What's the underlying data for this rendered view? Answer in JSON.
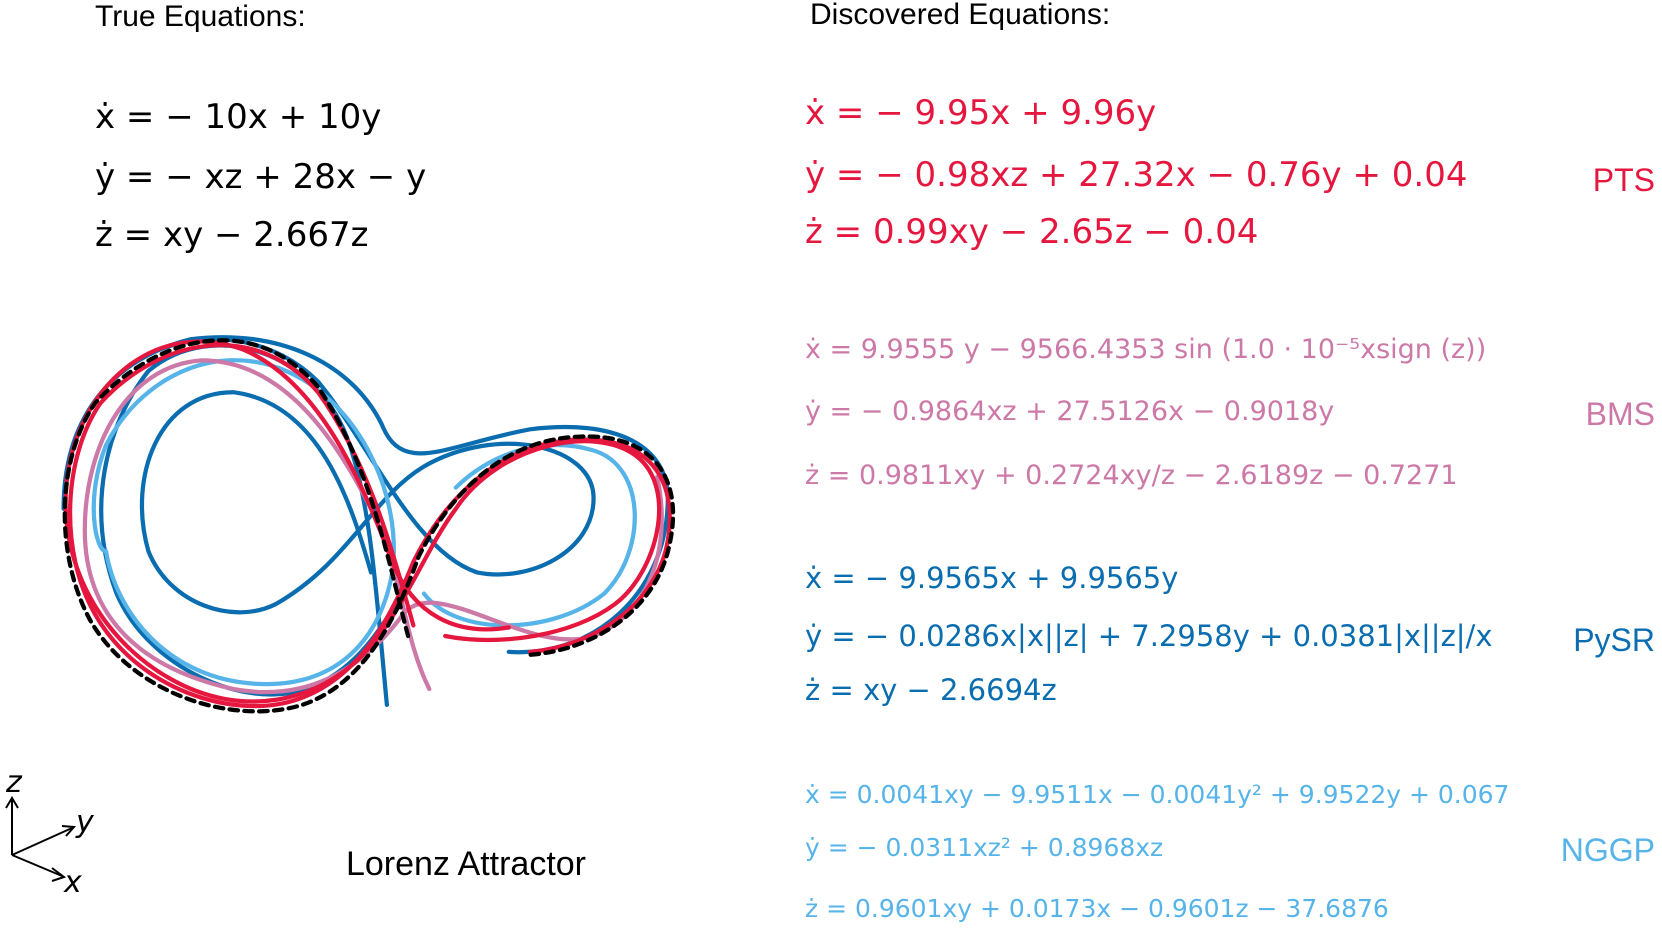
{
  "left": {
    "title": "True Equations:",
    "equations": [
      "ẋ = − 10x + 10y",
      "ẏ = − xz + 28x − y",
      "ż = xy − 2.667z"
    ],
    "caption": "Lorenz Attractor",
    "axes": {
      "z": "z",
      "y": "y",
      "x": "x"
    }
  },
  "right": {
    "title": "Discovered Equations:",
    "methods": [
      {
        "name": "PTS",
        "color": "#e5173f",
        "equations": [
          "ẋ = − 9.95x + 9.96y",
          "ẏ = − 0.98xz + 27.32x − 0.76y + 0.04",
          "ż = 0.99xy − 2.65z − 0.04"
        ]
      },
      {
        "name": "BMS",
        "color": "#cc79a7",
        "equations": [
          "ẋ = 9.9555 y − 9566.4353 sin (1.0 · 10⁻⁵xsign (z))",
          "ẏ = − 0.9864xz + 27.5126x − 0.9018y",
          "ż = 0.9811xy + 0.2724xy/z − 2.6189z − 0.7271"
        ]
      },
      {
        "name": "PySR",
        "color": "#0a6db0",
        "equations": [
          "ẋ = − 9.9565x + 9.9565y",
          "ẏ = − 0.0286x|x||z| + 7.2958y + 0.0381|x||z|/x",
          "ż = xy − 2.6694z"
        ]
      },
      {
        "name": "NGGP",
        "color": "#56b4e9",
        "equations": [
          "ẋ = 0.0041xy − 9.9511x − 0.0041y² + 9.9522y + 0.067",
          "ẏ = − 0.0311xz² + 0.8968xz",
          "ż = 0.9601xy + 0.0173x − 0.9601z − 37.6876"
        ]
      }
    ]
  }
}
